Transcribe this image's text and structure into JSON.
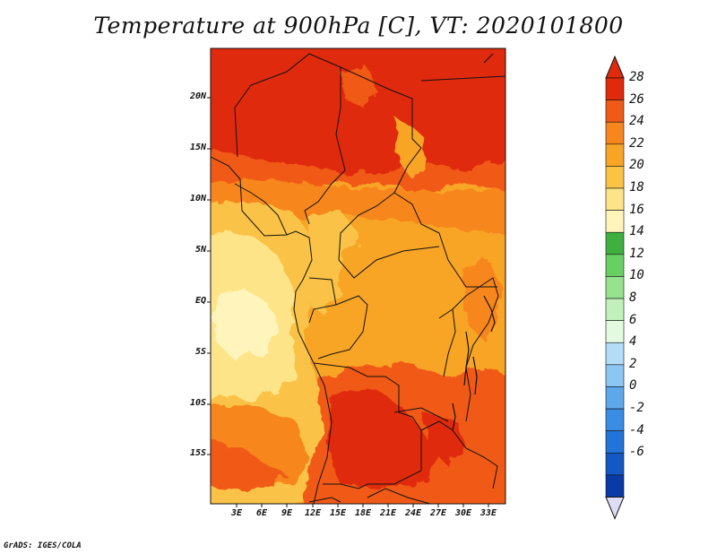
{
  "title": "Temperature at 900hPa [C], VT: 2020101800",
  "credit": "GrADS: IGES/COLA",
  "lat_labels": [
    "20N",
    "15N",
    "10N",
    "5N",
    "EQ",
    "5S",
    "10S",
    "15S"
  ],
  "lon_labels": [
    "3E",
    "6E",
    "9E",
    "12E",
    "15E",
    "18E",
    "21E",
    "24E",
    "27E",
    "30E",
    "33E"
  ],
  "colorbar": {
    "labels": [
      "28",
      "26",
      "24",
      "22",
      "20",
      "18",
      "16",
      "14",
      "12",
      "10",
      "8",
      "6",
      "4",
      "2",
      "0",
      "-2",
      "-4",
      "-6"
    ],
    "colors": [
      "#e02a0e",
      "#f05a18",
      "#f7861e",
      "#f8a527",
      "#fac346",
      "#fde488",
      "#fff5bc",
      "#3fb03f",
      "#67d063",
      "#96e28e",
      "#c2f0bc",
      "#e4fae0",
      "#b4dcf7",
      "#8cc6f3",
      "#5ea8ea",
      "#3b8ce3",
      "#2374d8",
      "#1458c4",
      "#0a3aa6",
      "#0a1e78"
    ],
    "over_color": "#e02a0e",
    "under_color": "#dcdcf5"
  },
  "map_region": {
    "lon_range": [
      "0E",
      "35E"
    ],
    "lat_range": [
      "20S",
      "24N"
    ]
  }
}
